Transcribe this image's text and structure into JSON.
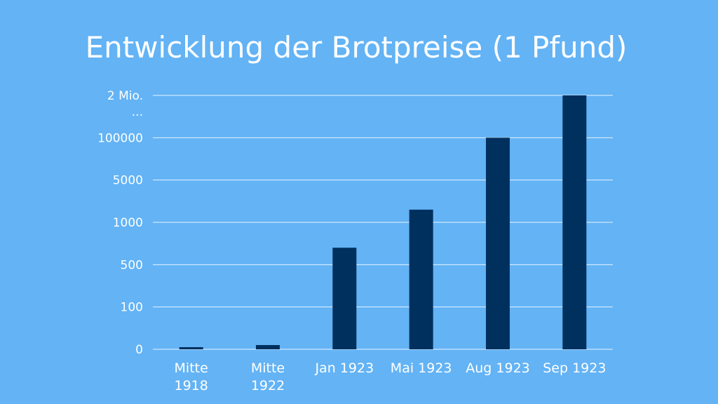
{
  "chart_data": {
    "type": "bar",
    "title": "Entwicklung der Brotpreise (1 Pfund)",
    "categories": [
      [
        "Mitte",
        "1918"
      ],
      [
        "Mitte",
        "1922"
      ],
      [
        "Jan 1923"
      ],
      [
        "Mai 1923"
      ],
      [
        "Aug 1923"
      ],
      [
        "Sep 1923"
      ]
    ],
    "y_ticks": [
      "0",
      "100",
      "500",
      "1000",
      "5000",
      "100000",
      [
        "2 Mio.",
        "..."
      ]
    ],
    "y_tick_values": [
      0,
      1,
      2,
      3,
      4,
      5,
      6
    ],
    "values": [
      0.05,
      0.1,
      2.4,
      3.3,
      5.0,
      6.0
    ],
    "ylim": [
      0,
      6
    ],
    "grid": true,
    "colors": {
      "background": "#63b3f5",
      "bar": "#00305e",
      "grid": "#ffffff",
      "text": "#ffffff"
    }
  }
}
